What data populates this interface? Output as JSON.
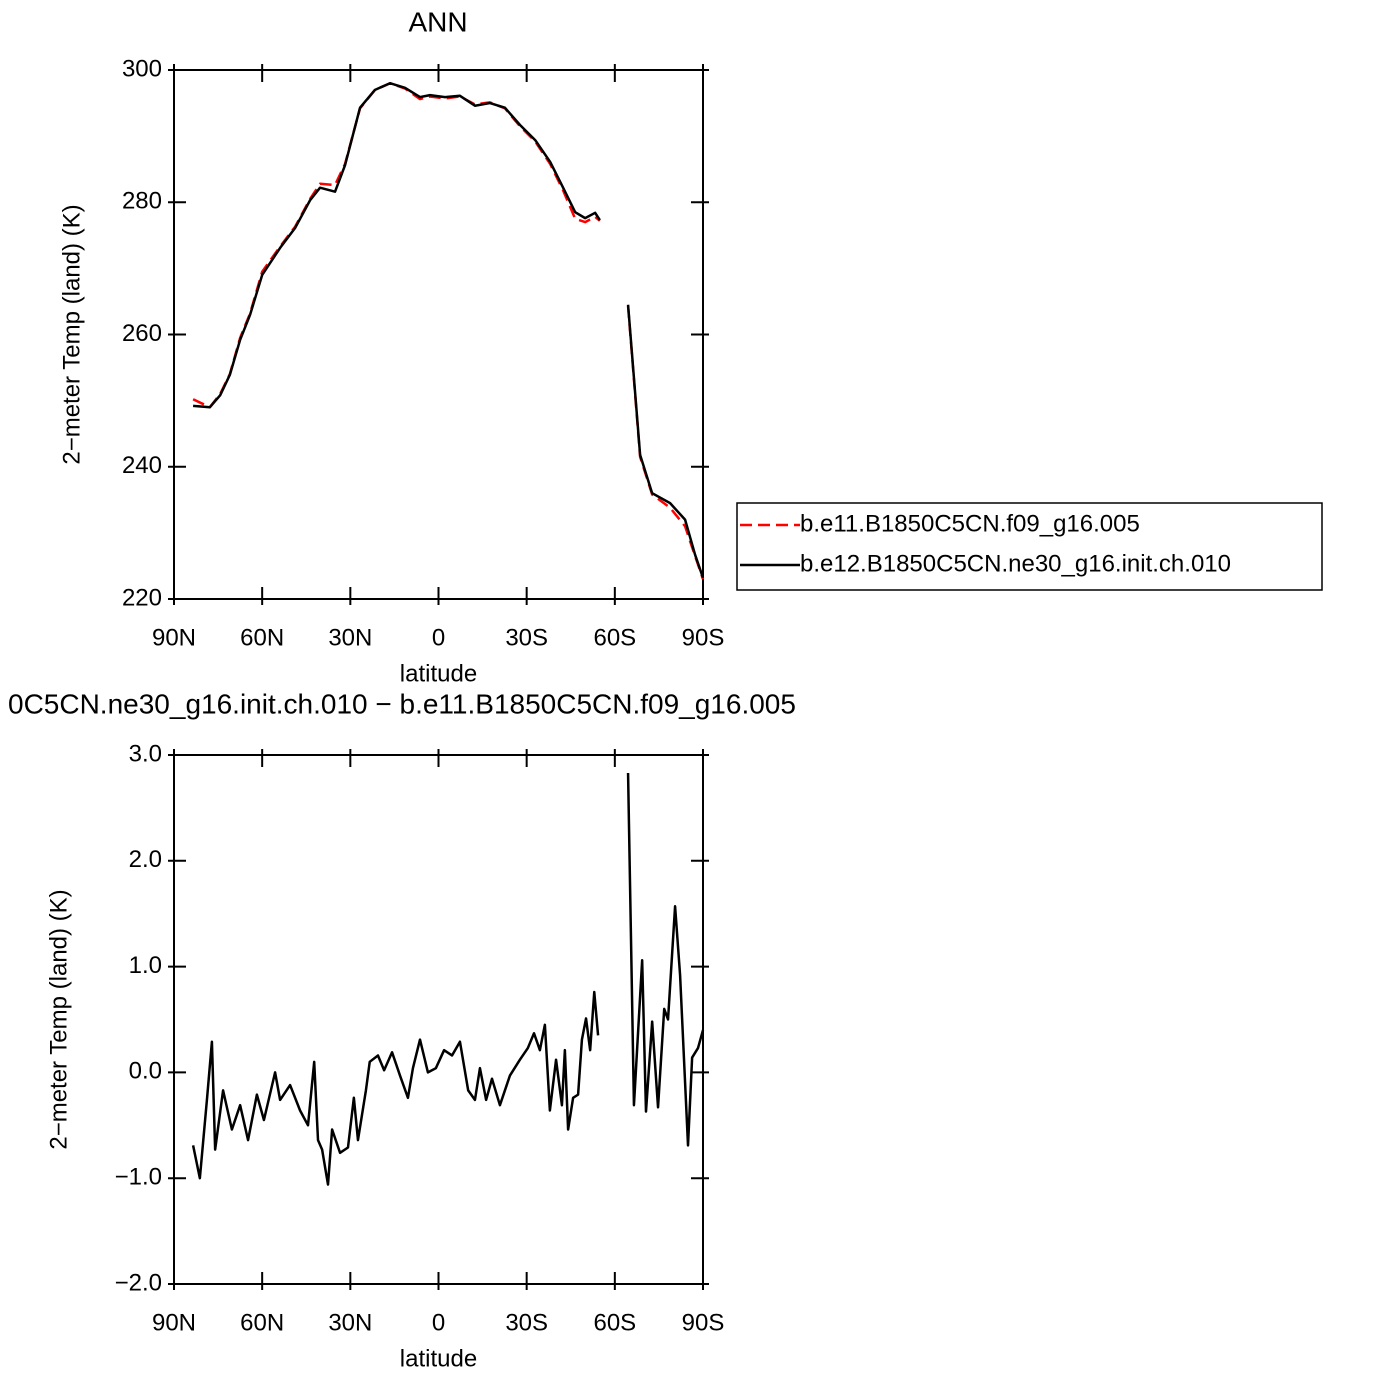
{
  "chart_data": [
    {
      "type": "line",
      "title": "ANN",
      "xlabel": "latitude",
      "ylabel": "2−meter Temp (land) (K)",
      "xlim": [
        90,
        -90
      ],
      "ylim": [
        220,
        300
      ],
      "xticks": [
        {
          "value": 90,
          "label": "90N"
        },
        {
          "value": 60,
          "label": "60N"
        },
        {
          "value": 30,
          "label": "30N"
        },
        0,
        {
          "value": -30,
          "label": "30S"
        },
        {
          "value": -60,
          "label": "60S"
        },
        {
          "value": -90,
          "label": "90S"
        }
      ],
      "yticks": [
        220,
        240,
        260,
        280,
        300
      ],
      "x": [
        83.5,
        77.8,
        74.3,
        71,
        67.5,
        64.1,
        60,
        53.9,
        48.8,
        43.7,
        40.3,
        35.2,
        31.8,
        26.7,
        21.6,
        16.5,
        11.4,
        6.3,
        2.9,
        -2.2,
        -7.3,
        -12.4,
        -17.5,
        -22.6,
        -27.7,
        -32.9,
        -38,
        -42.4,
        -46.5,
        -49.9,
        -53.3,
        -54.9,
        -60,
        -64.5,
        -68.6,
        -72.7,
        -78.8,
        -83.9,
        -87.3,
        -90
      ],
      "series": [
        {
          "name": "b.e11.B1850C5CN.f09_g16.005",
          "color": "#ff0000",
          "dash": "dashed",
          "values": [
            250.2,
            249,
            251,
            254,
            259.5,
            263.2,
            269.5,
            273.3,
            276.3,
            280.5,
            282.8,
            282.6,
            285.8,
            294.2,
            297,
            298,
            297.2,
            295.6,
            296,
            295.7,
            296,
            294.8,
            295.1,
            294.2,
            291.5,
            289.2,
            285.8,
            281.8,
            277.5,
            277,
            277.8,
            277.2,
            null,
            264.3,
            241.5,
            235.8,
            233.8,
            231,
            226.5,
            223
          ]
        },
        {
          "name": "b.e12.B1850C5CN.ne30_g16.init.ch.010",
          "color": "#000000",
          "dash": "solid",
          "values": [
            249.2,
            249,
            250.8,
            253.9,
            259.2,
            263,
            269,
            273.1,
            276.1,
            280.3,
            282.2,
            281.6,
            285.6,
            294.3,
            297,
            298,
            297.3,
            295.9,
            296.2,
            295.9,
            296.1,
            294.6,
            295,
            294.3,
            291.7,
            289.4,
            286.1,
            282.2,
            278.5,
            277.6,
            278.4,
            277.3,
            null,
            264.5,
            241.8,
            236,
            234.5,
            232,
            226.7,
            223.2
          ]
        }
      ]
    },
    {
      "type": "line",
      "title": "0C5CN.ne30_g16.init.ch.010 − b.e11.B1850C5CN.f09_g16.005",
      "xlabel": "latitude",
      "ylabel": "2−meter Temp (land) (K)",
      "xlim": [
        90,
        -90
      ],
      "ylim": [
        -2,
        3
      ],
      "xticks": [
        {
          "value": 90,
          "label": "90N"
        },
        {
          "value": 60,
          "label": "60N"
        },
        {
          "value": 30,
          "label": "30N"
        },
        0,
        {
          "value": -30,
          "label": "30S"
        },
        {
          "value": -60,
          "label": "60S"
        },
        {
          "value": -90,
          "label": "90S"
        }
      ],
      "yticks": [
        {
          "value": -2,
          "label": "−2.0"
        },
        {
          "value": -1,
          "label": "−1.0"
        },
        {
          "value": 0,
          "label": "0.0"
        },
        {
          "value": 1,
          "label": "1.0"
        },
        {
          "value": 2,
          "label": "2.0"
        },
        {
          "value": 3,
          "label": "3.0"
        }
      ],
      "x": [
        83.5,
        81.2,
        78.8,
        77.1,
        76,
        73.3,
        70.3,
        67.5,
        64.8,
        61.8,
        59.4,
        55.6,
        53.9,
        50.5,
        47.1,
        44.4,
        42.3,
        41,
        39.6,
        37.6,
        36.2,
        33.5,
        30.8,
        28.8,
        27.4,
        24.7,
        23.4,
        20.6,
        18.5,
        15.8,
        13.1,
        10.4,
        8.7,
        6.3,
        3.6,
        0.9,
        -1.9,
        -4.6,
        -7.3,
        -10.1,
        -12.4,
        -14.1,
        -16.2,
        -18.2,
        -20.9,
        -24.3,
        -27.7,
        -30.4,
        -32.5,
        -34.5,
        -36.2,
        -37.9,
        -40,
        -42,
        -43,
        -44.1,
        -45.8,
        -47.5,
        -48.8,
        -50.2,
        -51.6,
        -53,
        -54.3,
        -60,
        -64.5,
        -66.5,
        -69.3,
        -70.6,
        -72.7,
        -74.7,
        -76.8,
        -78.1,
        -80.5,
        -82.2,
        -84.9,
        -86.3,
        -88.3,
        -90
      ],
      "series": [
        {
          "color": "#000000",
          "dash": "solid",
          "values": [
            -0.69,
            -1.0,
            -0.26,
            0.29,
            -0.73,
            -0.17,
            -0.54,
            -0.31,
            -0.64,
            -0.21,
            -0.45,
            0.0,
            -0.26,
            -0.12,
            -0.36,
            -0.5,
            0.1,
            -0.64,
            -0.73,
            -1.06,
            -0.54,
            -0.76,
            -0.71,
            -0.24,
            -0.64,
            -0.17,
            0.1,
            0.16,
            0.02,
            0.19,
            -0.03,
            -0.24,
            0.04,
            0.31,
            0.0,
            0.04,
            0.21,
            0.16,
            0.29,
            -0.17,
            -0.26,
            0.04,
            -0.26,
            -0.06,
            -0.31,
            -0.03,
            0.12,
            0.23,
            0.37,
            0.21,
            0.45,
            -0.36,
            0.12,
            -0.31,
            0.21,
            -0.54,
            -0.24,
            -0.21,
            0.31,
            0.51,
            0.21,
            0.76,
            0.35,
            null,
            2.83,
            -0.31,
            1.06,
            -0.37,
            0.48,
            -0.33,
            0.6,
            0.5,
            1.57,
            0.92,
            -0.69,
            0.14,
            0.23,
            0.4
          ]
        }
      ]
    }
  ]
}
